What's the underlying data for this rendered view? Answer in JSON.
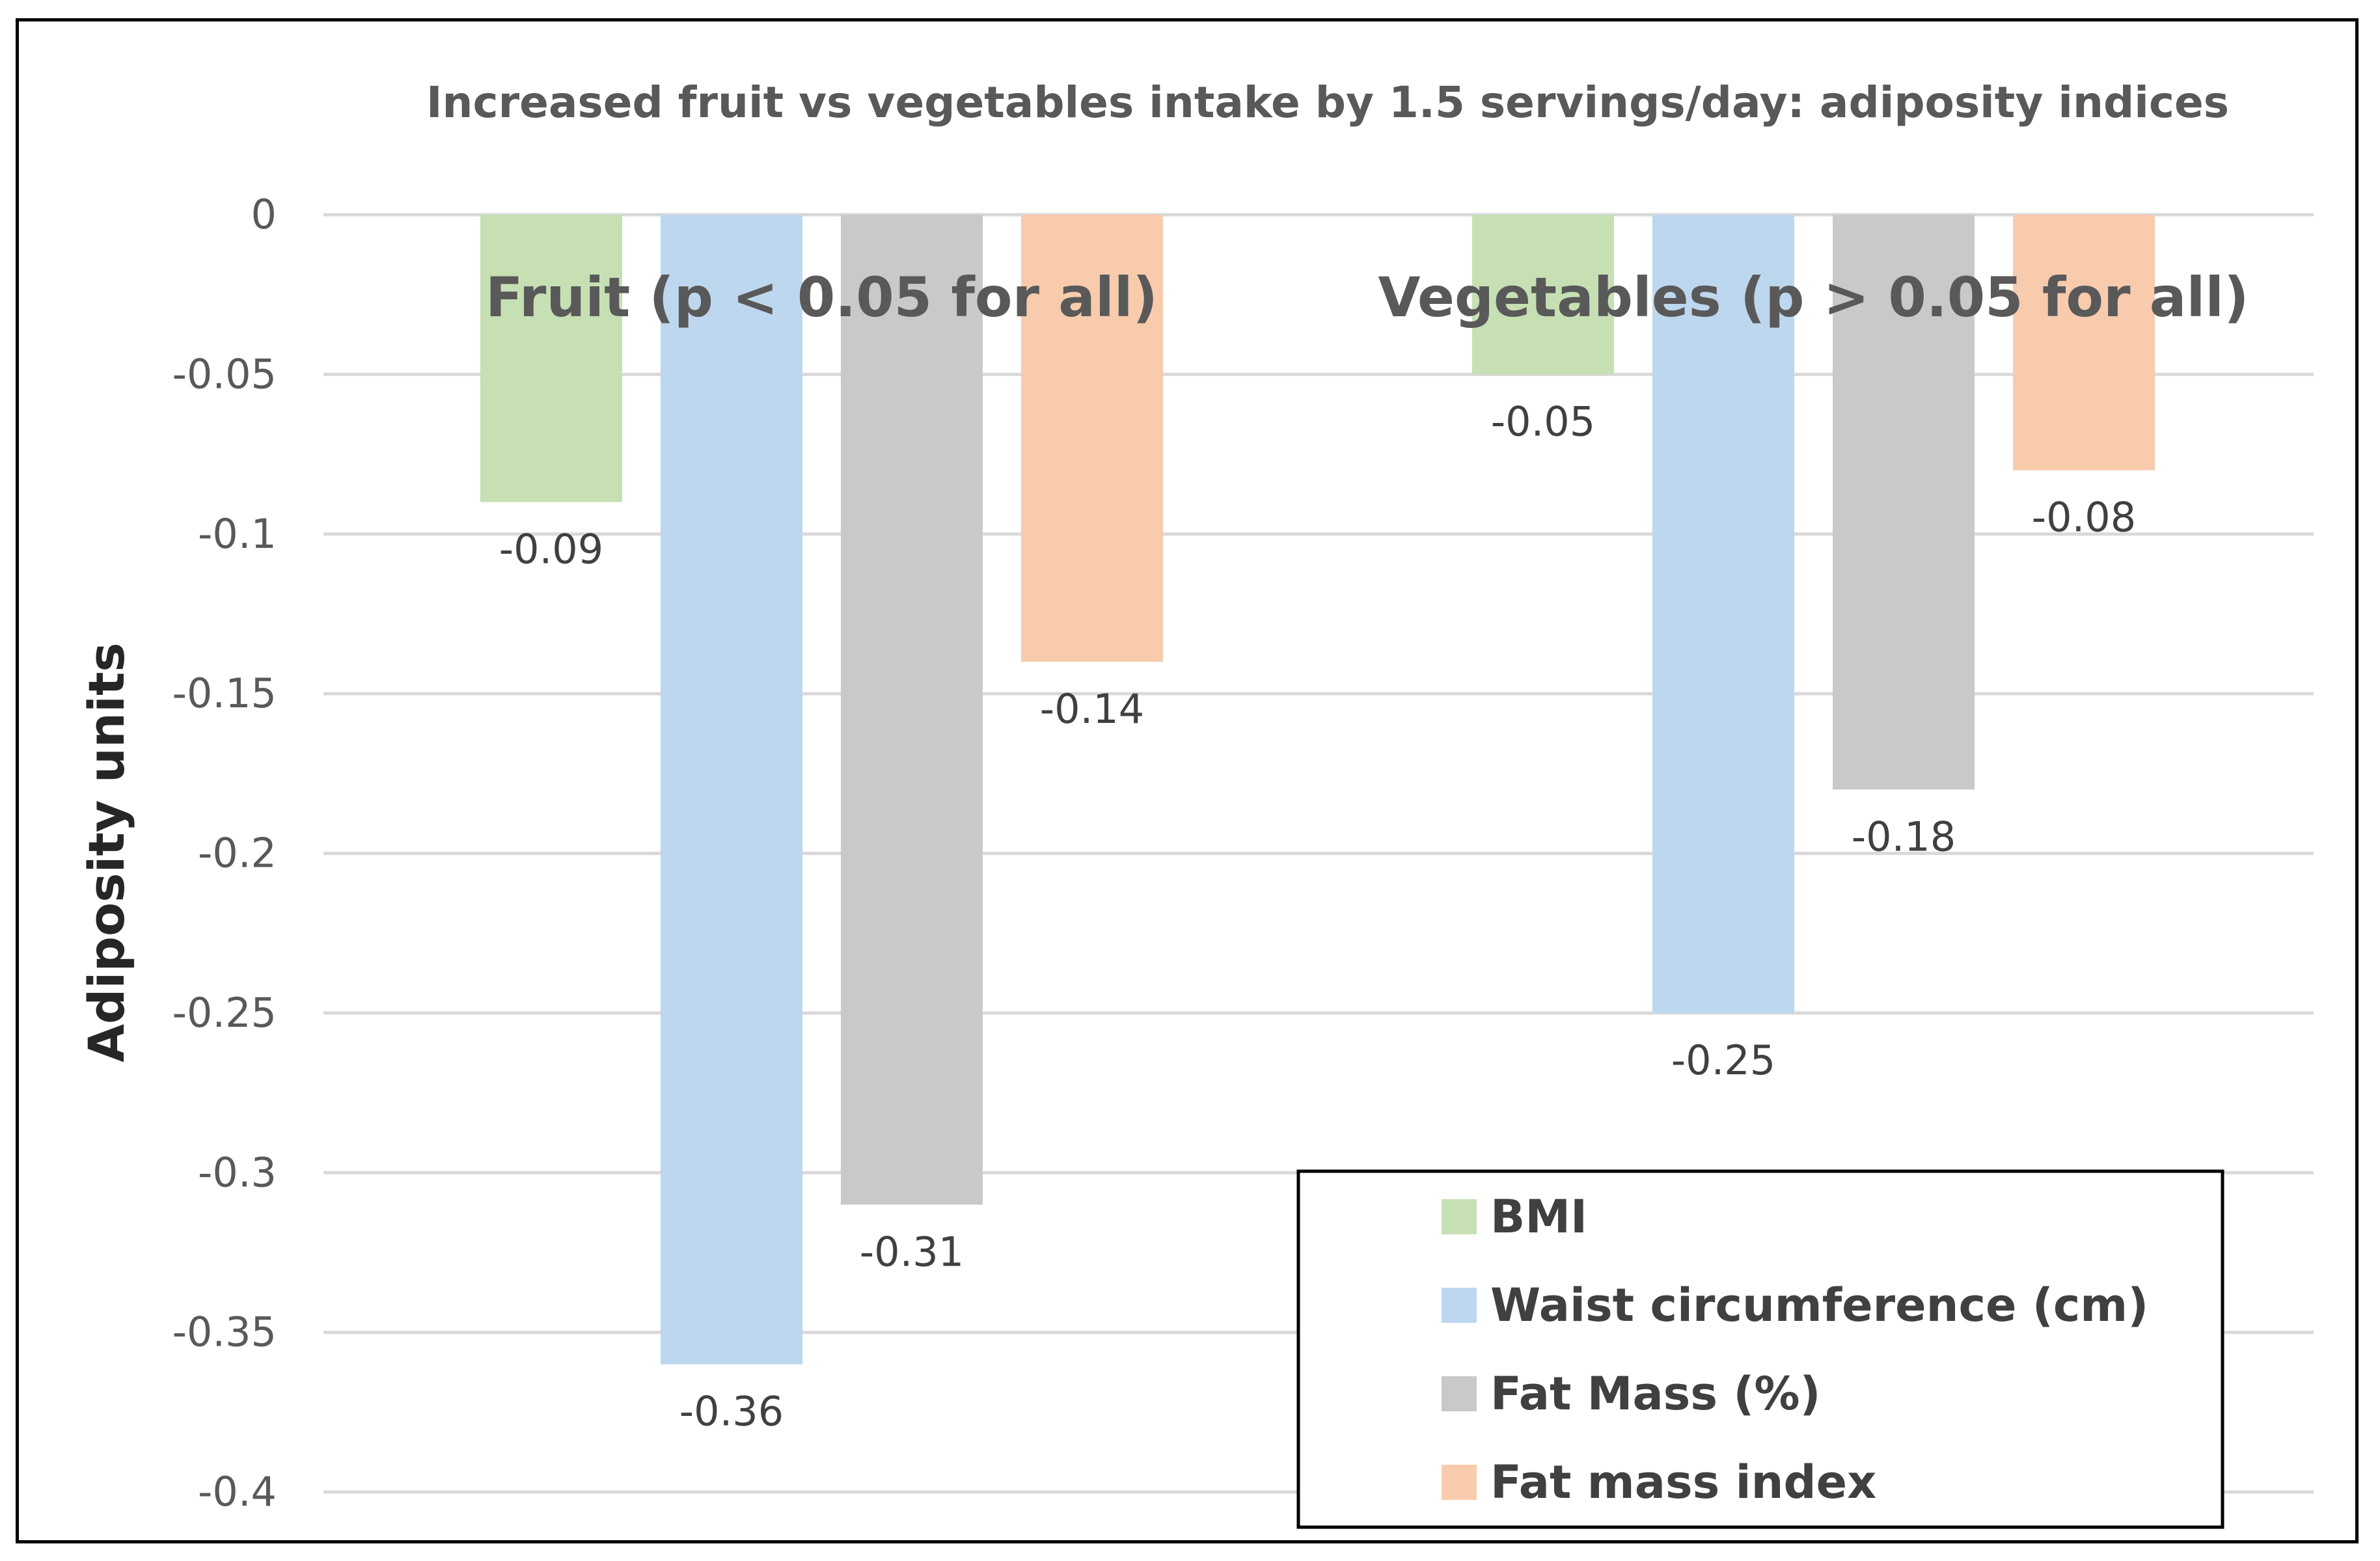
{
  "chart_data": {
    "type": "bar",
    "title": "Increased fruit vs vegetables intake by 1.5 servings/day: adiposity indices",
    "xlabel": "",
    "ylabel": "Adiposity units",
    "ylim": [
      -0.4,
      0
    ],
    "yticks": [
      0,
      -0.05,
      -0.1,
      -0.15,
      -0.2,
      -0.25,
      -0.3,
      -0.35,
      -0.4
    ],
    "ytick_labels": [
      "0",
      "-0.05",
      "-0.1",
      "-0.15",
      "-0.2",
      "-0.25",
      "-0.3",
      "-0.35",
      "-0.4"
    ],
    "grid": true,
    "legend_position": "bottom-right",
    "categories": [
      "Fruit (p < 0.05 for all)",
      "Vegetables (p > 0.05 for all)"
    ],
    "series": [
      {
        "name": "BMI",
        "color": "#c6e0b4",
        "values": [
          -0.09,
          -0.05
        ],
        "labels": [
          "-0.09",
          "-0.05"
        ]
      },
      {
        "name": "Waist circumference (cm)",
        "color": "#bdd7ee",
        "values": [
          -0.36,
          -0.25
        ],
        "labels": [
          "-0.36",
          "-0.25"
        ]
      },
      {
        "name": "Fat Mass (%)",
        "color": "#c9c9c9",
        "values": [
          -0.31,
          -0.18
        ],
        "labels": [
          "-0.31",
          "-0.18"
        ]
      },
      {
        "name": "Fat mass index",
        "color": "#f8cbad",
        "values": [
          -0.14,
          -0.08
        ],
        "labels": [
          "-0.14",
          "-0.08"
        ]
      }
    ]
  }
}
